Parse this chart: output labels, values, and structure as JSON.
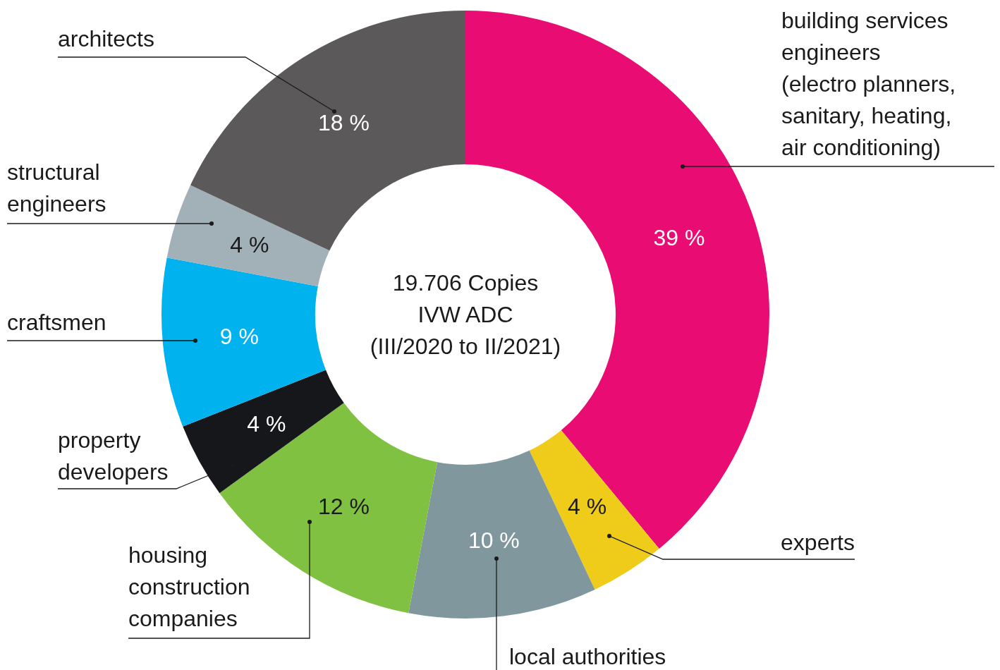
{
  "chart_data": {
    "type": "donut",
    "categories": [
      "building services engineers (electro planners, sanitary, heating, air conditioning)",
      "experts",
      "local authorities",
      "housing construction companies",
      "property developers",
      "craftsmen",
      "structural engineers",
      "architects"
    ],
    "values": [
      39,
      4,
      10,
      12,
      4,
      9,
      4,
      18
    ],
    "colors": [
      "#e80c73",
      "#efcb1a",
      "#7f979d",
      "#80c142",
      "#16171a",
      "#00b2ee",
      "#a2b0b8",
      "#5b595a"
    ],
    "value_labels": [
      "39 %",
      "4 %",
      "10 %",
      "12 %",
      "4 %",
      "9 %",
      "4 %",
      "18 %"
    ],
    "annotations": [
      "19.706 Copies",
      "IVW ADC",
      "(III/2020 to II/2021)"
    ]
  }
}
